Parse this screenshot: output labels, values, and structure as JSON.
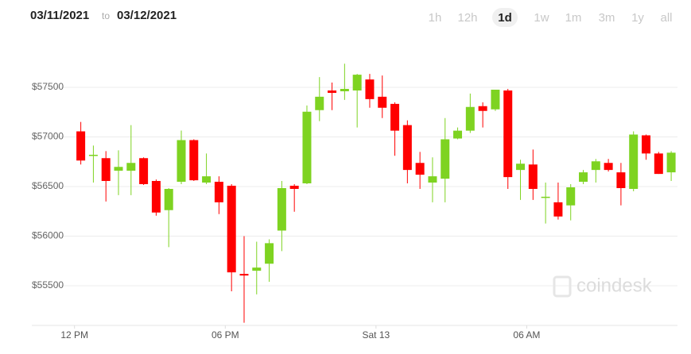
{
  "header": {
    "from": "03/11/2021",
    "to_word": "to",
    "to": "03/12/2021"
  },
  "ranges": {
    "options": [
      "1h",
      "12h",
      "1d",
      "1w",
      "1m",
      "3m",
      "1y",
      "all"
    ],
    "selected": 2
  },
  "watermark": "coindesk",
  "chart_data": {
    "type": "candlestick",
    "up_color": "#7ed321",
    "down_color": "#ff0000",
    "grid": true,
    "ylim": [
      55100,
      57900
    ],
    "yticks": [
      {
        "value": 55500,
        "label": "$55500"
      },
      {
        "value": 56000,
        "label": "$56000"
      },
      {
        "value": 56500,
        "label": "$56500"
      },
      {
        "value": 57000,
        "label": "$57000"
      },
      {
        "value": 57500,
        "label": "$57500"
      }
    ],
    "xlim": [
      10.3,
      36
    ],
    "xticks": [
      {
        "value": 12,
        "label": "12 PM"
      },
      {
        "value": 18,
        "label": "06 PM"
      },
      {
        "value": 24,
        "label": "Sat 13"
      },
      {
        "value": 30,
        "label": "06 AM"
      }
    ],
    "x": [
      12.25,
      12.75,
      13.25,
      13.75,
      14.25,
      14.75,
      15.25,
      15.75,
      16.25,
      16.75,
      17.25,
      17.75,
      18.25,
      18.75,
      19.25,
      19.75,
      20.25,
      20.75,
      21.25,
      21.75,
      22.25,
      22.75,
      23.25,
      23.75,
      24.25,
      24.75,
      25.25,
      25.75,
      26.25,
      26.75,
      27.25,
      27.75,
      28.25,
      28.75,
      29.25,
      29.75,
      30.25,
      30.75,
      31.25,
      31.75,
      32.25,
      32.75,
      33.25,
      33.75,
      34.25,
      34.75,
      35.25,
      35.75
    ],
    "open": [
      57056,
      56810,
      56786,
      56659,
      56659,
      56786,
      56556,
      56262,
      56548,
      56968,
      56540,
      56548,
      56508,
      55619,
      55651,
      55722,
      56056,
      56508,
      56532,
      57270,
      57468,
      57460,
      57468,
      57579,
      57405,
      57333,
      57119,
      56738,
      56540,
      56579,
      56984,
      57063,
      57310,
      57278,
      57468,
      56667,
      56722,
      56389,
      56341,
      56310,
      56548,
      56667,
      56738,
      56643,
      56476,
      57016,
      56833,
      56643
    ],
    "high": [
      57151,
      56913,
      56857,
      56865,
      57119,
      56794,
      56571,
      56484,
      57064,
      56976,
      56833,
      56603,
      56524,
      56000,
      55944,
      55968,
      56556,
      56524,
      57317,
      57603,
      57548,
      57738,
      57635,
      57635,
      57619,
      57349,
      57167,
      56849,
      56794,
      57190,
      57095,
      57437,
      57349,
      57476,
      57484,
      56770,
      56873,
      56540,
      56540,
      56524,
      56667,
      56778,
      56778,
      56738,
      57056,
      57024,
      56849,
      56857
    ],
    "low": [
      56722,
      56540,
      56349,
      56413,
      56413,
      56516,
      56206,
      55889,
      56524,
      56556,
      56524,
      56222,
      55444,
      55127,
      55413,
      55540,
      55849,
      56246,
      56524,
      57159,
      57270,
      57373,
      57095,
      57294,
      57190,
      56810,
      56532,
      56476,
      56341,
      56341,
      56976,
      57040,
      57095,
      57262,
      56476,
      56365,
      56365,
      56127,
      56167,
      56159,
      56524,
      56540,
      56651,
      56310,
      56452,
      56770,
      56627,
      56556
    ],
    "close": [
      56762,
      56820,
      56556,
      56698,
      56738,
      56524,
      56238,
      56476,
      56968,
      56563,
      56603,
      56341,
      55635,
      55603,
      55683,
      55929,
      56484,
      56476,
      57254,
      57405,
      57444,
      57484,
      57627,
      57381,
      57294,
      57063,
      56667,
      56619,
      56603,
      56976,
      57063,
      57302,
      57262,
      57476,
      56595,
      56730,
      56476,
      56397,
      56198,
      56492,
      56643,
      56754,
      56667,
      56484,
      57024,
      56833,
      56627,
      56841
    ]
  }
}
